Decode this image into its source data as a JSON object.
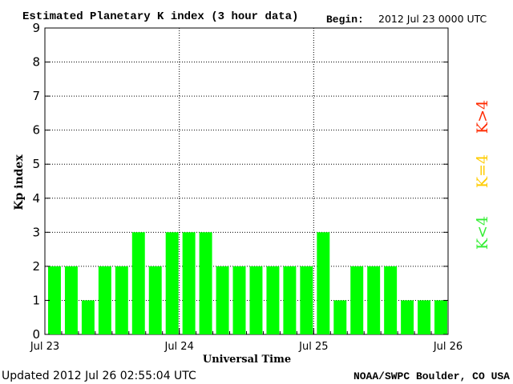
{
  "header": {
    "title": "Estimated Planetary K index (3 hour data)",
    "begin_label": "Begin:",
    "begin_value": "2012 Jul 23 0000 UTC"
  },
  "footer": {
    "updated": "Updated 2012 Jul 26 02:55:04 UTC",
    "source": "NOAA/SWPC Boulder, CO USA"
  },
  "legend": {
    "high": "K>4",
    "equal": "K=4",
    "low": "K<4",
    "colors": {
      "high": "#ff2a00",
      "equal": "#ffcc00",
      "low": "#33ee33"
    }
  },
  "chart_data": {
    "type": "bar",
    "title": "Estimated Planetary K index (3 hour data)",
    "xlabel": "Universal Time",
    "ylabel": "Kp index",
    "ylim": [
      0,
      9
    ],
    "yticks": [
      "0",
      "1",
      "2",
      "3",
      "4",
      "5",
      "6",
      "7",
      "8",
      "9"
    ],
    "xticks": [
      "Jul 23",
      "Jul 24",
      "Jul 25",
      "Jul 26"
    ],
    "bar_color": "#00ff00",
    "interval": "3 hour",
    "values": [
      2,
      2,
      1,
      2,
      2,
      3,
      2,
      3,
      3,
      3,
      2,
      2,
      2,
      2,
      2,
      2,
      3,
      1,
      2,
      2,
      2,
      1,
      1,
      1
    ],
    "grid": true
  }
}
